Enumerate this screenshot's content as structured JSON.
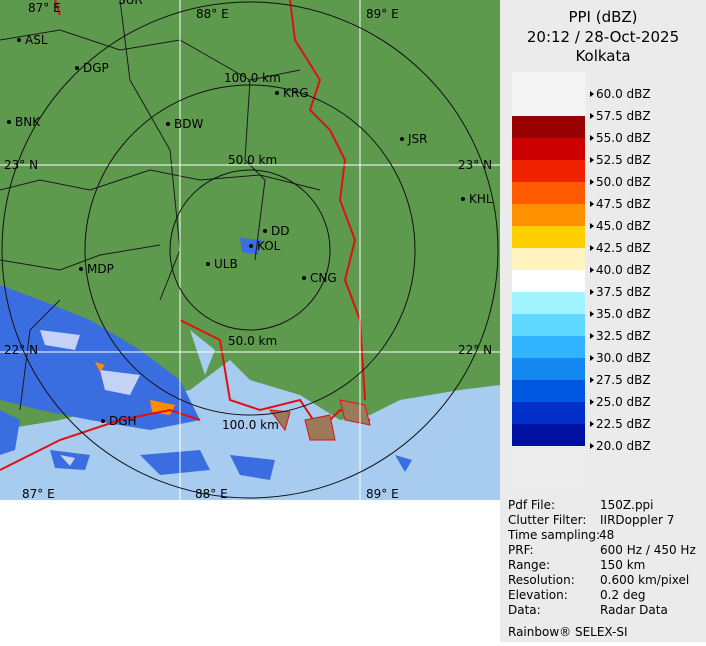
{
  "header": {
    "title": "PPI (dBZ)",
    "time": "20:12 / 28-Oct-2025",
    "station": "Kolkata"
  },
  "legend": [
    {
      "label": "60.0 dBZ",
      "color": "#f4f4f4"
    },
    {
      "label": "57.5 dBZ",
      "color": "#990000"
    },
    {
      "label": "55.0 dBZ",
      "color": "#cc0000"
    },
    {
      "label": "52.5 dBZ",
      "color": "#ee2200"
    },
    {
      "label": "50.0 dBZ",
      "color": "#ff5a00"
    },
    {
      "label": "47.5 dBZ",
      "color": "#ff9000"
    },
    {
      "label": "45.0 dBZ",
      "color": "#ffd000"
    },
    {
      "label": "42.5 dBZ",
      "color": "#fff4c0"
    },
    {
      "label": "40.0 dBZ",
      "color": "#ffffff"
    },
    {
      "label": "37.5 dBZ",
      "color": "#a0f4ff"
    },
    {
      "label": "35.0 dBZ",
      "color": "#60d8ff"
    },
    {
      "label": "32.5 dBZ",
      "color": "#30b4ff"
    },
    {
      "label": "30.0 dBZ",
      "color": "#1488f0"
    },
    {
      "label": "27.5 dBZ",
      "color": "#0058e0"
    },
    {
      "label": "25.0 dBZ",
      "color": "#0030c8"
    },
    {
      "label": "22.5 dBZ",
      "color": "#0010a0"
    },
    {
      "label": "20.0 dBZ",
      "color": "#ececec"
    }
  ],
  "map": {
    "grid_labels": [
      "87° E",
      "SUR",
      "88° E",
      "89° E",
      "23° N",
      "23° N",
      "22° N",
      "22° N",
      "87° E",
      "88° E",
      "89° E"
    ],
    "range_labels": [
      "100.0 km",
      "50.0 km",
      "50.0 km",
      "100.0 km"
    ],
    "cities": [
      "ASL",
      "DGP",
      "BNK",
      "BDW",
      "KRG",
      "JSR",
      "KHL",
      "DD",
      "KOL",
      "ULB",
      "CNG",
      "MDP",
      "DGH"
    ]
  },
  "info": [
    {
      "label": "Pdf File:",
      "value": "150Z.ppi"
    },
    {
      "label": "Clutter Filter:",
      "value": "IIRDoppler 7"
    },
    {
      "label": "Time sampling:",
      "value": "48"
    },
    {
      "label": "PRF:",
      "value": "600 Hz / 450 Hz"
    },
    {
      "label": "Range:",
      "value": "150 km"
    },
    {
      "label": "Resolution:",
      "value": "0.600 km/pixel"
    },
    {
      "label": "Elevation:",
      "value": "0.2 deg"
    },
    {
      "label": "Data:",
      "value": "Radar Data"
    }
  ],
  "footer": "Rainbow® SELEX-SI"
}
